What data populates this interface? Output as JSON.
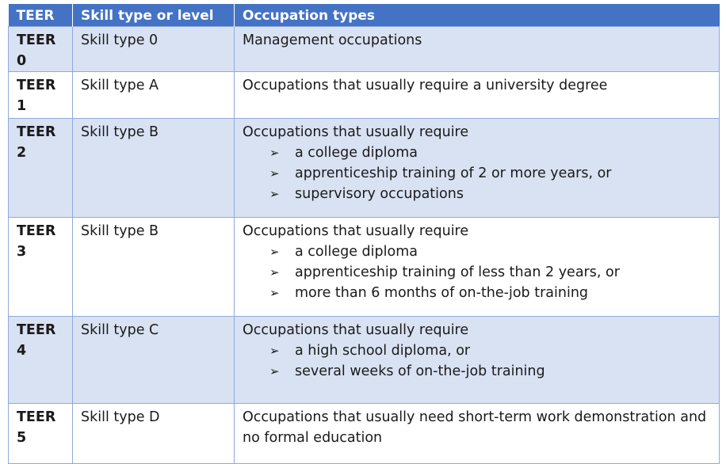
{
  "table": {
    "headers": [
      "TEER",
      "Skill type or level",
      "Occupation types"
    ],
    "rows": [
      {
        "teer": "TEER 0",
        "skill": "Skill type 0",
        "intro": "Management occupations",
        "bullets": []
      },
      {
        "teer": "TEER 1",
        "skill": "Skill type A",
        "intro": "Occupations that usually require a university degree",
        "bullets": []
      },
      {
        "teer": "TEER 2",
        "skill": "Skill type B",
        "intro": "Occupations that usually require",
        "bullets": [
          "a college diploma",
          "apprenticeship training of 2 or more years, or",
          "supervisory occupations"
        ]
      },
      {
        "teer": "TEER 3",
        "skill": "Skill type B",
        "intro": "Occupations that usually require",
        "bullets": [
          "a college diploma",
          "apprenticeship training of less than 2 years, or",
          "more than 6 months of on-the-job training"
        ]
      },
      {
        "teer": "TEER 4",
        "skill": "Skill type C",
        "intro": "Occupations that usually require",
        "bullets": [
          "a high school diploma, or",
          "several weeks of on-the-job training"
        ]
      },
      {
        "teer": "TEER 5",
        "skill": "Skill type D",
        "intro": "Occupations that usually need short-term work demonstration and no formal education",
        "bullets": []
      }
    ]
  },
  "icons": {
    "bullet": "arrowhead-bullet-icon"
  },
  "colors": {
    "header_bg": "#4472c4",
    "shaded_row": "#d9e2f3",
    "border": "#8eaadb"
  }
}
